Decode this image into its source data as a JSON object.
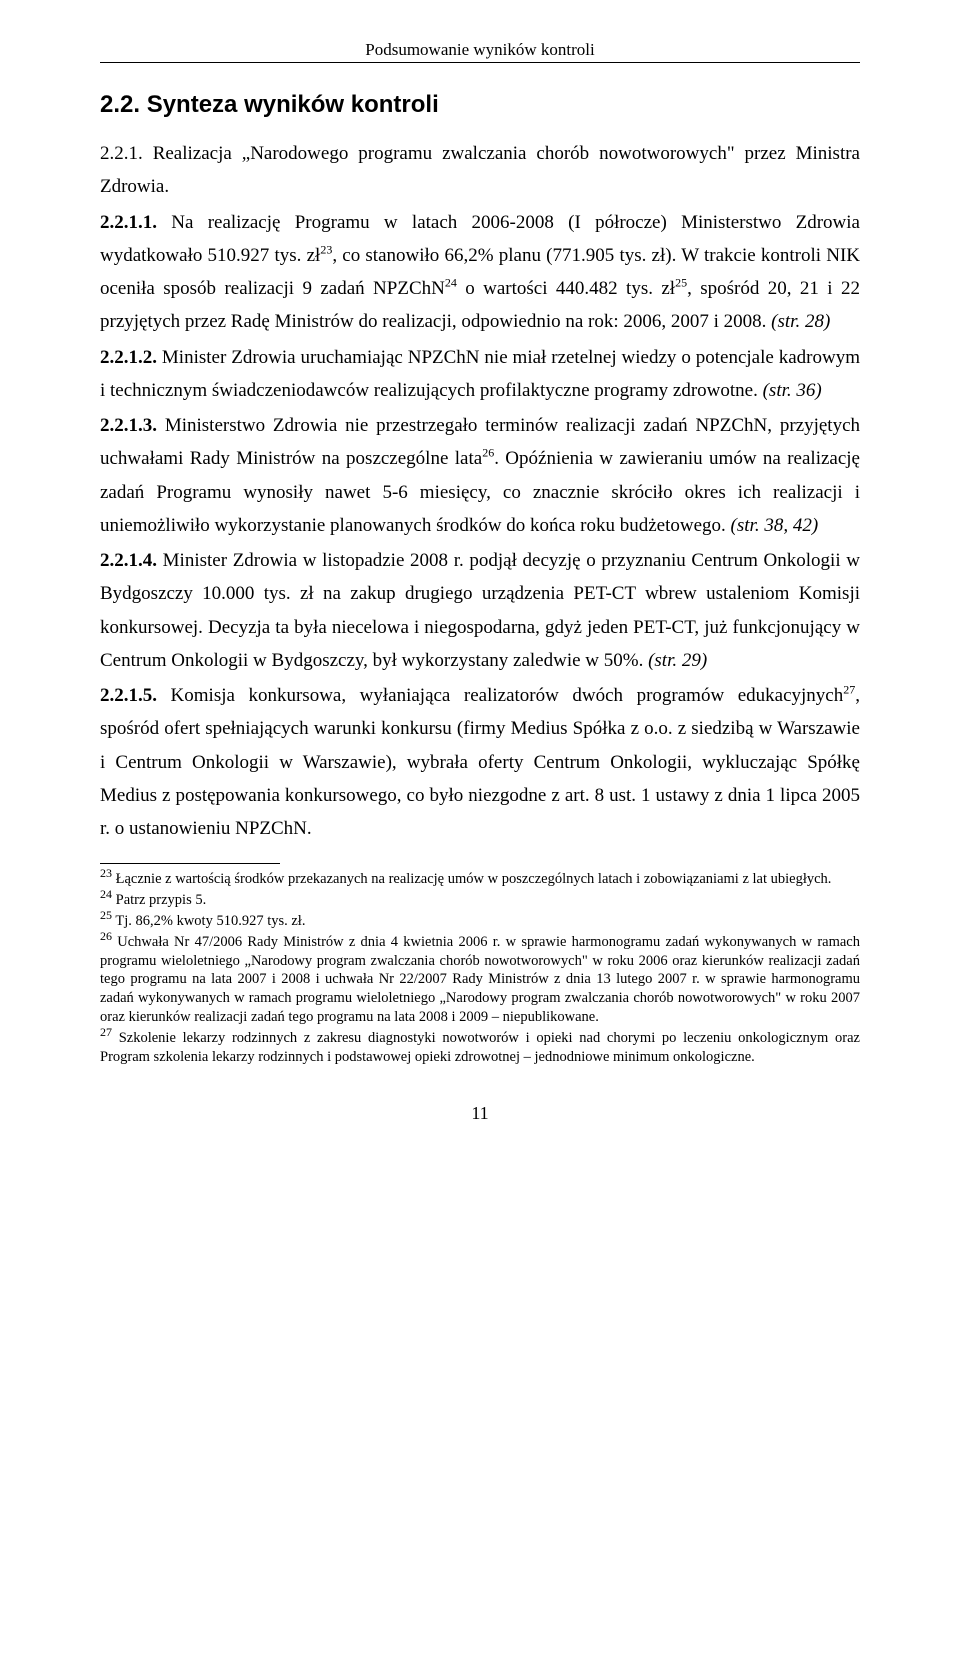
{
  "running_head": "Podsumowanie wyników kontroli",
  "section_title": "2.2. Synteza wyników kontroli",
  "p1_lead": "2.2.1. Realizacja „Narodowego programu zwalczania chorób nowotworowych\" przez Ministra Zdrowia.",
  "p2a": "2.2.1.1.",
  "p2b": " Na realizację Programu w latach 2006-2008 (I półrocze) Ministerstwo Zdrowia wydatkowało 510.927 tys. zł",
  "p2_sup1": "23",
  "p2c": ", co stanowiło 66,2% planu (771.905 tys. zł). W trakcie kontroli NIK oceniła sposób realizacji 9 zadań NPZChN",
  "p2_sup2": "24",
  "p2d": " o wartości 440.482 tys. zł",
  "p2_sup3": "25",
  "p2e": ", spośród 20, 21 i 22 przyjętych przez Radę Ministrów do realizacji, odpowiednio na rok: 2006, 2007 i 2008. ",
  "p2f": "(str. 28)",
  "p3a": "2.2.1.2.",
  "p3b": " Minister Zdrowia uruchamiając NPZChN nie miał rzetelnej wiedzy o potencjale kadrowym i technicznym świadczeniodawców realizujących profilaktyczne programy zdrowotne. ",
  "p3c": "(str. 36)",
  "p4a": "2.2.1.3.",
  "p4b": " Ministerstwo Zdrowia nie przestrzegało terminów realizacji zadań NPZChN, przyjętych uchwałami Rady Ministrów na poszczególne lata",
  "p4_sup1": "26",
  "p4c": ". Opóźnienia w zawieraniu umów na realizację zadań Programu wynosiły nawet 5-6 miesięcy, co znacznie skróciło okres ich realizacji i uniemożliwiło wykorzystanie planowanych środków do końca roku budżetowego. ",
  "p4d": "(str. 38, 42)",
  "p5a": "2.2.1.4.",
  "p5b": " Minister Zdrowia w listopadzie 2008 r. podjął decyzję o przyznaniu Centrum Onkologii w Bydgoszczy 10.000 tys. zł na zakup drugiego urządzenia PET-CT wbrew ustaleniom Komisji konkursowej. Decyzja ta była niecelowa i niegospodarna, gdyż jeden PET-CT, już funkcjonujący w Centrum Onkologii w Bydgoszczy, był wykorzystany zaledwie w 50%. ",
  "p5c": "(str. 29)",
  "p6a": "2.2.1.5.",
  "p6b": " Komisja konkursowa, wyłaniająca realizatorów dwóch programów edukacyjnych",
  "p6_sup1": "27",
  "p6c": ", spośród ofert spełniających warunki konkursu (firmy Medius Spółka z o.o. z siedzibą w Warszawie i Centrum Onkologii w Warszawie), wybrała oferty Centrum Onkologii, wykluczając Spółkę Medius z postępowania konkursowego, co było niezgodne z art. 8 ust. 1 ustawy z dnia 1 lipca 2005 r. o ustanowieniu NPZChN.",
  "fn23_sup": "23",
  "fn23": " Łącznie z wartością środków przekazanych na realizację umów w poszczególnych latach i zobowiązaniami z lat ubiegłych.",
  "fn24_sup": "24",
  "fn24": " Patrz przypis 5.",
  "fn25_sup": "25",
  "fn25": " Tj. 86,2% kwoty 510.927 tys. zł.",
  "fn26_sup": "26",
  "fn26": " Uchwała Nr 47/2006 Rady Ministrów z dnia 4 kwietnia 2006 r. w sprawie harmonogramu zadań wykonywanych w ramach programu wieloletniego „Narodowy program zwalczania chorób nowotworowych\" w roku 2006 oraz kierunków realizacji zadań tego programu na lata 2007 i 2008 i uchwała Nr 22/2007 Rady Ministrów z dnia 13 lutego 2007 r. w sprawie harmonogramu zadań wykonywanych w ramach programu wieloletniego „Narodowy program zwalczania chorób nowotworowych\" w roku 2007 oraz kierunków realizacji zadań tego programu na lata 2008 i 2009 – niepublikowane.",
  "fn27_sup": "27",
  "fn27": " Szkolenie lekarzy rodzinnych z zakresu diagnostyki nowotworów i opieki nad chorymi po leczeniu onkologicznym oraz Program szkolenia lekarzy rodzinnych i podstawowej opieki zdrowotnej – jednodniowe minimum onkologiczne.",
  "page_number": "11"
}
